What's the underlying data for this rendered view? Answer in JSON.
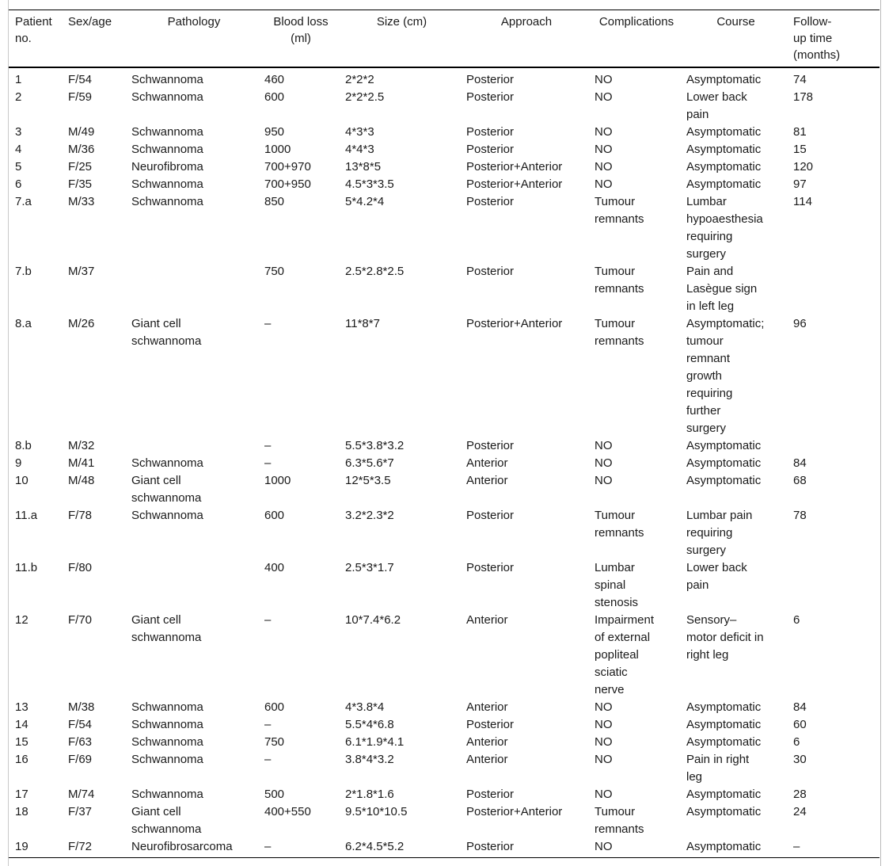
{
  "table": {
    "headers": [
      "Patient\nno.",
      "Sex/age",
      "Pathology",
      "Blood loss\n(ml)",
      "Size (cm)",
      "Approach",
      "Complications",
      "Course",
      "Follow-\nup time\n(months)"
    ],
    "rows": [
      [
        "1",
        "F/54",
        "Schwannoma",
        "460",
        "2*2*2",
        "Posterior",
        "NO",
        "Asymptomatic",
        "74"
      ],
      [
        "2",
        "F/59",
        "Schwannoma",
        "600",
        "2*2*2.5",
        "Posterior",
        "NO",
        "Lower back\npain",
        "178"
      ],
      [
        "3",
        "M/49",
        "Schwannoma",
        "950",
        "4*3*3",
        "Posterior",
        "NO",
        "Asymptomatic",
        "81"
      ],
      [
        "4",
        "M/36",
        "Schwannoma",
        "1000",
        "4*4*3",
        "Posterior",
        "NO",
        "Asymptomatic",
        "15"
      ],
      [
        "5",
        "F/25",
        "Neurofibroma",
        "700+970",
        "13*8*5",
        "Posterior+Anterior",
        "NO",
        "Asymptomatic",
        "120"
      ],
      [
        "6",
        "F/35",
        "Schwannoma",
        "700+950",
        "4.5*3*3.5",
        "Posterior+Anterior",
        "NO",
        "Asymptomatic",
        "97"
      ],
      [
        "7.a",
        "M/33",
        "Schwannoma",
        "850",
        "5*4.2*4",
        "Posterior",
        "Tumour\nremnants",
        "Lumbar\nhypoaesthesia\nrequiring\nsurgery",
        "114"
      ],
      [
        "7.b",
        "M/37",
        "",
        "750",
        "2.5*2.8*2.5",
        "Posterior",
        "Tumour\nremnants",
        "Pain and\nLasègue sign\nin left leg",
        ""
      ],
      [
        "8.a",
        "M/26",
        "Giant cell\nschwannoma",
        "–",
        "11*8*7",
        "Posterior+Anterior",
        "Tumour\nremnants",
        "Asymptomatic;\ntumour\nremnant\ngrowth\nrequiring\nfurther\nsurgery",
        "96"
      ],
      [
        "8.b",
        "M/32",
        "",
        "–",
        "5.5*3.8*3.2",
        "Posterior",
        "NO",
        "Asymptomatic",
        ""
      ],
      [
        "9",
        "M/41",
        "Schwannoma",
        "–",
        "6.3*5.6*7",
        "Anterior",
        "NO",
        "Asymptomatic",
        "84"
      ],
      [
        "10",
        "M/48",
        "Giant cell\nschwannoma",
        "1000",
        "12*5*3.5",
        "Anterior",
        "NO",
        "Asymptomatic",
        "68"
      ],
      [
        "11.a",
        "F/78",
        "Schwannoma",
        "600",
        "3.2*2.3*2",
        "Posterior",
        "Tumour\nremnants",
        "Lumbar pain\nrequiring\nsurgery",
        "78"
      ],
      [
        "11.b",
        "F/80",
        "",
        "400",
        "2.5*3*1.7",
        "Posterior",
        "Lumbar\nspinal\nstenosis",
        "Lower back\npain",
        ""
      ],
      [
        "12",
        "F/70",
        "Giant cell\nschwannoma",
        "–",
        "10*7.4*6.2",
        "Anterior",
        "Impairment\nof external\npopliteal\nsciatic\nnerve",
        "Sensory–\nmotor deficit in\nright leg",
        "6"
      ],
      [
        "13",
        "M/38",
        "Schwannoma",
        "600",
        "4*3.8*4",
        "Anterior",
        "NO",
        "Asymptomatic",
        "84"
      ],
      [
        "14",
        "F/54",
        "Schwannoma",
        "–",
        "5.5*4*6.8",
        "Posterior",
        "NO",
        "Asymptomatic",
        "60"
      ],
      [
        "15",
        "F/63",
        "Schwannoma",
        "750",
        "6.1*1.9*4.1",
        "Anterior",
        "NO",
        "Asymptomatic",
        "6"
      ],
      [
        "16",
        "F/69",
        "Schwannoma",
        "–",
        "3.8*4*3.2",
        "Anterior",
        "NO",
        "Pain in right\nleg",
        "30"
      ],
      [
        "17",
        "M/74",
        "Schwannoma",
        "500",
        "2*1.8*1.6",
        "Posterior",
        "NO",
        "Asymptomatic",
        "28"
      ],
      [
        "18",
        "F/37",
        "Giant cell\nschwannoma",
        "400+550",
        "9.5*10*10.5",
        "Posterior+Anterior",
        "Tumour\nremnants",
        "Asymptomatic",
        "24"
      ],
      [
        "19",
        "F/72",
        "Neurofibrosarcoma",
        "–",
        "6.2*4.5*5.2",
        "Posterior",
        "NO",
        "Asymptomatic",
        "–"
      ]
    ]
  }
}
